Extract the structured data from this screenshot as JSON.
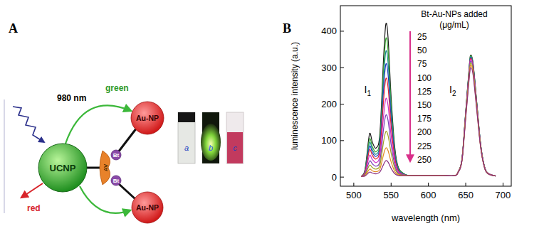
{
  "panels": [
    "A",
    "B"
  ],
  "diagram": {
    "excitation": "980 nm",
    "core": "UCNP",
    "linker": "AV",
    "bt_labels": [
      "Bt",
      "Bt"
    ],
    "au_np_labels": [
      "Au-NP",
      "Au-NP"
    ],
    "emission_green": "green",
    "emission_red": "red",
    "vials": [
      "a",
      "b",
      "c"
    ]
  },
  "chart_data": {
    "type": "line",
    "xlabel": "wavelength (nm)",
    "ylabel": "luminescence intensity (a.u.)",
    "legend_title": [
      "Bt-Au-NPs added",
      "(μg/mL)"
    ],
    "legend": "top",
    "grid": false,
    "xlim": [
      482,
      711
    ],
    "ylim": [
      -25,
      470
    ],
    "xticks": [
      500,
      550,
      600,
      650,
      700
    ],
    "yticks": [
      0,
      100,
      200,
      300,
      400
    ],
    "annotations": [
      {
        "text": "I",
        "subscript": "1",
        "x": 514,
        "y": 230
      },
      {
        "text": "I",
        "subscript": "2",
        "x": 628,
        "y": 230
      }
    ],
    "x": [
      510,
      515,
      520,
      522,
      525,
      530,
      535,
      540,
      543,
      546,
      550,
      555,
      560,
      570,
      580,
      600,
      620,
      635,
      640,
      645,
      650,
      655,
      657,
      660,
      665,
      670,
      675,
      680,
      690
    ],
    "series": [
      {
        "name": "25",
        "color": "#1a1a1a",
        "values": [
          2,
          20,
          105,
          120,
          95,
          80,
          120,
          330,
          420,
          380,
          220,
          80,
          25,
          6,
          4,
          4,
          4,
          4,
          15,
          50,
          180,
          310,
          335,
          310,
          200,
          90,
          30,
          10,
          3
        ]
      },
      {
        "name": "50",
        "color": "#3aa832",
        "values": [
          2,
          18,
          92,
          105,
          83,
          70,
          105,
          299,
          380,
          344,
          199,
          72,
          23,
          6,
          4,
          4,
          4,
          4,
          15,
          50,
          179,
          308,
          333,
          308,
          199,
          89,
          30,
          10,
          3
        ]
      },
      {
        "name": "75",
        "color": "#1c8c8c",
        "values": [
          2,
          16,
          83,
          95,
          75,
          63,
          95,
          271,
          345,
          312,
          181,
          66,
          21,
          6,
          4,
          4,
          4,
          4,
          15,
          49,
          177,
          305,
          330,
          305,
          197,
          89,
          30,
          10,
          3
        ]
      },
      {
        "name": "100",
        "color": "#2340c0",
        "values": [
          2,
          14,
          74,
          85,
          67,
          57,
          85,
          244,
          310,
          280,
          162,
          59,
          18,
          5,
          4,
          4,
          4,
          4,
          15,
          49,
          176,
          304,
          328,
          304,
          196,
          88,
          29,
          10,
          3
        ]
      },
      {
        "name": "125",
        "color": "#e3262e",
        "values": [
          2,
          13,
          66,
          75,
          59,
          50,
          75,
          212,
          270,
          244,
          141,
          51,
          16,
          5,
          4,
          4,
          4,
          4,
          15,
          49,
          175,
          301,
          325,
          301,
          194,
          87,
          29,
          10,
          3
        ]
      },
      {
        "name": "150",
        "color": "#d030c8",
        "values": [
          2,
          10,
          53,
          60,
          48,
          40,
          60,
          169,
          215,
          195,
          113,
          41,
          13,
          5,
          4,
          4,
          4,
          4,
          14,
          48,
          173,
          298,
          322,
          298,
          192,
          86,
          29,
          10,
          3
        ]
      },
      {
        "name": "175",
        "color": "#7b3fb5",
        "values": [
          2,
          8,
          39,
          45,
          36,
          30,
          45,
          134,
          170,
          154,
          89,
          32,
          10,
          5,
          4,
          4,
          4,
          4,
          14,
          47,
          171,
          294,
          318,
          294,
          190,
          85,
          28,
          9,
          3
        ]
      },
      {
        "name": "200",
        "color": "#a0a020",
        "values": [
          2,
          6,
          29,
          33,
          26,
          22,
          33,
          98,
          125,
          113,
          66,
          24,
          8,
          5,
          4,
          4,
          4,
          4,
          14,
          47,
          168,
          290,
          313,
          290,
          187,
          84,
          28,
          9,
          3
        ]
      },
      {
        "name": "225",
        "color": "#e08a20",
        "values": [
          2,
          4,
          19,
          22,
          17,
          15,
          22,
          63,
          80,
          72,
          42,
          15,
          6,
          4,
          4,
          4,
          4,
          4,
          14,
          46,
          165,
          284,
          307,
          284,
          183,
          82,
          27,
          9,
          3
        ]
      },
      {
        "name": "250",
        "color": "#8a2f80",
        "values": [
          2,
          3,
          12,
          14,
          11,
          9,
          14,
          35,
          45,
          41,
          24,
          9,
          4,
          4,
          4,
          4,
          4,
          4,
          13,
          45,
          161,
          278,
          300,
          278,
          179,
          81,
          27,
          9,
          3
        ]
      }
    ]
  }
}
